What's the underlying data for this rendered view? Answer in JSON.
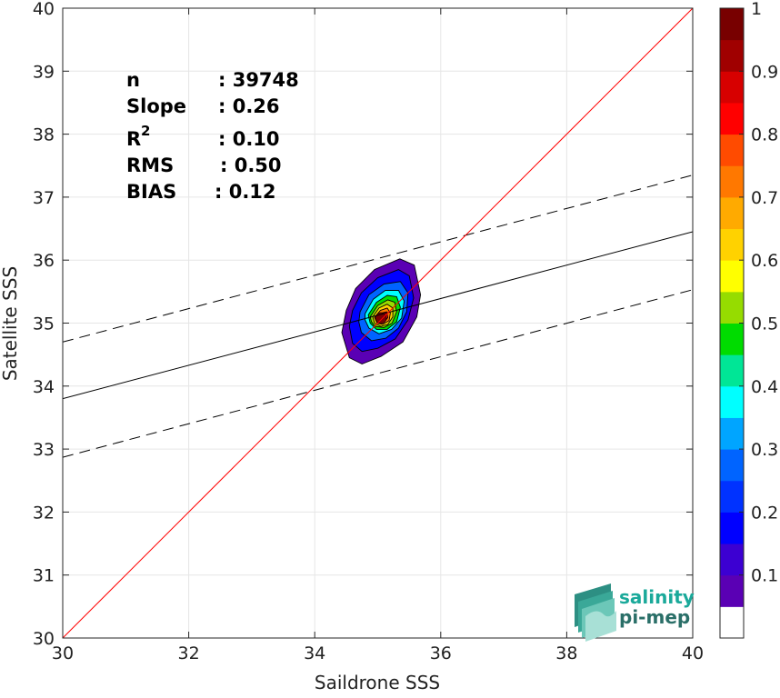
{
  "chart_data": {
    "type": "heatmap",
    "subtype": "density-contour scatter comparison",
    "xlabel": "Saildrone SSS",
    "ylabel": "Satellite SSS",
    "xlim": [
      30,
      40
    ],
    "ylim": [
      30,
      40
    ],
    "xticks": [
      "30",
      "32",
      "34",
      "36",
      "38",
      "40"
    ],
    "yticks": [
      "30",
      "31",
      "32",
      "33",
      "34",
      "35",
      "36",
      "37",
      "38",
      "39",
      "40"
    ],
    "grid": true,
    "stats": [
      {
        "label": "n",
        "value": ": 39748"
      },
      {
        "label": "Slope",
        "value": ": 0.26"
      },
      {
        "label": "R",
        "sup": "2",
        "value": ": 0.10"
      },
      {
        "label": "RMS",
        "value": ": 0.50"
      },
      {
        "label": "BIAS",
        "value": ": 0.12"
      }
    ],
    "identity_line": {
      "x": [
        30,
        40
      ],
      "y": [
        30,
        40
      ],
      "color": "#ff0000"
    },
    "regression_line": {
      "x": [
        30,
        40
      ],
      "y": [
        33.8,
        36.45
      ],
      "color": "#000000"
    },
    "upper_band": {
      "x": [
        30,
        40
      ],
      "y": [
        34.7,
        37.35
      ],
      "style": "dashed"
    },
    "lower_band": {
      "x": [
        30,
        40
      ],
      "y": [
        32.87,
        35.53
      ],
      "style": "dashed"
    },
    "density_center": [
      35.05,
      35.08
    ],
    "contours": [
      {
        "level": 0.05,
        "points": [
          [
            34.5,
            35.2
          ],
          [
            34.65,
            35.55
          ],
          [
            34.95,
            35.85
          ],
          [
            35.35,
            36.02
          ],
          [
            35.58,
            35.92
          ],
          [
            35.68,
            35.45
          ],
          [
            35.62,
            35.1
          ],
          [
            35.4,
            34.7
          ],
          [
            35.05,
            34.47
          ],
          [
            34.75,
            34.35
          ],
          [
            34.55,
            34.45
          ],
          [
            34.43,
            34.85
          ]
        ]
      },
      {
        "level": 0.15,
        "points": [
          [
            34.6,
            35.2
          ],
          [
            34.74,
            35.48
          ],
          [
            35.0,
            35.72
          ],
          [
            35.33,
            35.85
          ],
          [
            35.5,
            35.75
          ],
          [
            35.57,
            35.4
          ],
          [
            35.48,
            35.05
          ],
          [
            35.28,
            34.75
          ],
          [
            35.0,
            34.6
          ],
          [
            34.75,
            34.55
          ],
          [
            34.6,
            34.68
          ],
          [
            34.55,
            34.95
          ]
        ]
      },
      {
        "level": 0.25,
        "points": [
          [
            34.72,
            35.18
          ],
          [
            34.86,
            35.45
          ],
          [
            35.1,
            35.62
          ],
          [
            35.36,
            35.66
          ],
          [
            35.48,
            35.48
          ],
          [
            35.46,
            35.18
          ],
          [
            35.33,
            34.92
          ],
          [
            35.13,
            34.76
          ],
          [
            34.9,
            34.72
          ],
          [
            34.74,
            34.85
          ],
          [
            34.7,
            35.02
          ]
        ]
      },
      {
        "level": 0.35,
        "points": [
          [
            34.8,
            35.15
          ],
          [
            34.93,
            35.38
          ],
          [
            35.12,
            35.52
          ],
          [
            35.33,
            35.52
          ],
          [
            35.42,
            35.35
          ],
          [
            35.38,
            35.08
          ],
          [
            35.22,
            34.9
          ],
          [
            35.02,
            34.83
          ],
          [
            34.86,
            34.92
          ],
          [
            34.8,
            35.05
          ]
        ]
      },
      {
        "level": 0.45,
        "points": [
          [
            34.85,
            35.13
          ],
          [
            34.98,
            35.33
          ],
          [
            35.15,
            35.44
          ],
          [
            35.3,
            35.42
          ],
          [
            35.36,
            35.25
          ],
          [
            35.3,
            35.02
          ],
          [
            35.15,
            34.9
          ],
          [
            34.98,
            34.9
          ],
          [
            34.88,
            35.0
          ]
        ]
      },
      {
        "level": 0.55,
        "points": [
          [
            34.88,
            35.1
          ],
          [
            35.0,
            35.28
          ],
          [
            35.16,
            35.37
          ],
          [
            35.27,
            35.33
          ],
          [
            35.3,
            35.18
          ],
          [
            35.23,
            35.0
          ],
          [
            35.1,
            34.93
          ],
          [
            34.96,
            34.95
          ],
          [
            34.9,
            35.02
          ]
        ]
      },
      {
        "level": 0.65,
        "points": [
          [
            34.92,
            35.1
          ],
          [
            35.02,
            35.24
          ],
          [
            35.15,
            35.3
          ],
          [
            35.24,
            35.24
          ],
          [
            35.24,
            35.1
          ],
          [
            35.16,
            34.98
          ],
          [
            35.05,
            34.95
          ],
          [
            34.95,
            35.0
          ]
        ]
      },
      {
        "level": 0.75,
        "points": [
          [
            34.95,
            35.09
          ],
          [
            35.04,
            35.2
          ],
          [
            35.15,
            35.24
          ],
          [
            35.2,
            35.16
          ],
          [
            35.18,
            35.04
          ],
          [
            35.08,
            34.98
          ],
          [
            34.99,
            35.0
          ]
        ]
      },
      {
        "level": 0.85,
        "points": [
          [
            34.98,
            35.08
          ],
          [
            35.06,
            35.16
          ],
          [
            35.14,
            35.18
          ],
          [
            35.16,
            35.09
          ],
          [
            35.1,
            35.01
          ],
          [
            35.02,
            35.01
          ]
        ]
      },
      {
        "level": 0.95,
        "points": [
          [
            35.01,
            35.08
          ],
          [
            35.07,
            35.13
          ],
          [
            35.12,
            35.12
          ],
          [
            35.12,
            35.05
          ],
          [
            35.05,
            35.03
          ]
        ]
      }
    ],
    "colorbar": {
      "range": [
        0,
        1
      ],
      "ticks": [
        "0.1",
        "0.2",
        "0.3",
        "0.4",
        "0.5",
        "0.6",
        "0.7",
        "0.8",
        "0.9",
        "1"
      ],
      "colors": [
        "#ffffff",
        "#5a00b4",
        "#3c00d2",
        "#0000ff",
        "#0032ff",
        "#0064ff",
        "#00a5ff",
        "#00ffff",
        "#00e696",
        "#00dc00",
        "#96dc00",
        "#ffff00",
        "#ffd200",
        "#ffaa00",
        "#ff7800",
        "#ff4b00",
        "#ff0000",
        "#d70000",
        "#a00000",
        "#780000"
      ]
    }
  },
  "logo": {
    "line1": "salinity",
    "line2": "pi-mep"
  },
  "colors": {
    "grid": "#e6e6e6",
    "axis": "#262626",
    "logo_teal": "#1aa99a",
    "logo_dark": "#2a6f68"
  }
}
